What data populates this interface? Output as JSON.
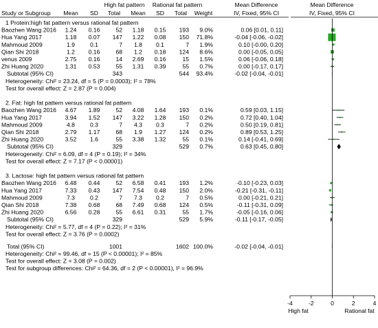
{
  "chart_data": {
    "type": "forest",
    "header": {
      "group1": "High fat pattern",
      "group2": "Rational fat pattern",
      "effect_text": "Mean Difference",
      "effect_method": "IV, Fixed, 95% CI",
      "effect_plot": "Mean Difference",
      "effect_plot_method": "IV, Fixed, 95% CI",
      "study": "Study or Subgroup",
      "mean": "Mean",
      "sd": "SD",
      "total": "Total",
      "weight": "Weight"
    },
    "subgroups": [
      {
        "title": "1  Protein:high fat pattern versus rational  fat pattern",
        "studies": [
          {
            "name": "Baozhen Wang 2016",
            "m1": "1.24",
            "sd1": "0.16",
            "n1": "52",
            "m2": "1.18",
            "sd2": "0.15",
            "n2": "193",
            "weight": "9.0%",
            "ci_text": "0.06 [0.01, 0.11]",
            "md": 0.06,
            "lo": 0.01,
            "hi": 0.11,
            "w": 9.0
          },
          {
            "name": "Hua Yang 2017",
            "m1": "1.18",
            "sd1": "0.07",
            "n1": "147",
            "m2": "1.22",
            "sd2": "0.08",
            "n2": "150",
            "weight": "71.8%",
            "ci_text": "-0.04 [-0.06, -0.02]",
            "md": -0.04,
            "lo": -0.06,
            "hi": -0.02,
            "w": 71.8
          },
          {
            "name": "Mahmoud 2009",
            "m1": "1.9",
            "sd1": "0.1",
            "n1": "7",
            "m2": "1.8",
            "sd2": "0.1",
            "n2": "7",
            "weight": "1.9%",
            "ci_text": "0.10 [-0.00, 0.20]",
            "md": 0.1,
            "lo": 0.0,
            "hi": 0.2,
            "w": 1.9
          },
          {
            "name": "Qian Shi 2018",
            "m1": "1.2",
            "sd1": "0.16",
            "n1": "68",
            "m2": "1.2",
            "sd2": "0.18",
            "n2": "124",
            "weight": "8.6%",
            "ci_text": "0.00 [-0.05, 0.05]",
            "md": 0.0,
            "lo": -0.05,
            "hi": 0.05,
            "w": 8.6
          },
          {
            "name": "venus 2009",
            "m1": "2.75",
            "sd1": "0.16",
            "n1": "14",
            "m2": "2.69",
            "sd2": "0.16",
            "n2": "15",
            "weight": "1.5%",
            "ci_text": "0.06 [-0.06, 0.18]",
            "md": 0.06,
            "lo": -0.06,
            "hi": 0.18,
            "w": 1.5
          },
          {
            "name": "Zhi Huang 2020",
            "m1": "1.31",
            "sd1": "0.53",
            "n1": "55",
            "m2": "1.31",
            "sd2": "0.39",
            "n2": "55",
            "weight": "0.7%",
            "ci_text": "0.00 [-0.17, 0.17]",
            "md": 0.0,
            "lo": -0.17,
            "hi": 0.17,
            "w": 0.7
          }
        ],
        "subtotal": {
          "label": "Subtotal (95% CI)",
          "n1": "343",
          "n2": "544",
          "weight": "93.4%",
          "ci_text": "-0.02 [-0.04, -0.01]",
          "md": -0.02,
          "lo": -0.04,
          "hi": -0.01
        },
        "heterogeneity": "Heterogeneity: Chi² = 23.24, df = 5 (P = 0.0003); I² = 78%",
        "overall": "Test for overall effect: Z = 2.87 (P = 0.004)"
      },
      {
        "title": "2. Fat: high fat pattern versus rational fat pattern",
        "studies": [
          {
            "name": "Baozhen Wang 2016",
            "m1": "4.67",
            "sd1": "1.89",
            "n1": "52",
            "m2": "4.08",
            "sd2": "1.64",
            "n2": "193",
            "weight": "0.1%",
            "ci_text": "0.59 [0.03, 1.15]",
            "md": 0.59,
            "lo": 0.03,
            "hi": 1.15,
            "w": 0.1
          },
          {
            "name": "Hua Yang 2017",
            "m1": "3.94",
            "sd1": "1.52",
            "n1": "147",
            "m2": "3.22",
            "sd2": "1.28",
            "n2": "150",
            "weight": "0.2%",
            "ci_text": "0.72 [0.40, 1.04]",
            "md": 0.72,
            "lo": 0.4,
            "hi": 1.04,
            "w": 0.2
          },
          {
            "name": "Mahmoud 2009",
            "m1": "4.8",
            "sd1": "0.3",
            "n1": "7",
            "m2": "4.3",
            "sd2": "0.3",
            "n2": "7",
            "weight": "0.2%",
            "ci_text": "0.50 [0.19, 0.81]",
            "md": 0.5,
            "lo": 0.19,
            "hi": 0.81,
            "w": 0.2
          },
          {
            "name": "Qian Shi 2018",
            "m1": "2.79",
            "sd1": "1.17",
            "n1": "68",
            "m2": "1.9",
            "sd2": "1.27",
            "n2": "124",
            "weight": "0.2%",
            "ci_text": "0.89 [0.53, 1.25]",
            "md": 0.89,
            "lo": 0.53,
            "hi": 1.25,
            "w": 0.2
          },
          {
            "name": "Zhi Huang 2020",
            "m1": "3.52",
            "sd1": "1.6",
            "n1": "55",
            "m2": "3.38",
            "sd2": "1.32",
            "n2": "55",
            "weight": "0.1%",
            "ci_text": "0.14 [-0.41, 0.69]",
            "md": 0.14,
            "lo": -0.41,
            "hi": 0.69,
            "w": 0.1
          }
        ],
        "subtotal": {
          "label": "Subtotal (95% CI)",
          "n1": "329",
          "n2": "529",
          "weight": "0.7%",
          "ci_text": "0.63 [0.45, 0.80]",
          "md": 0.63,
          "lo": 0.45,
          "hi": 0.8
        },
        "heterogeneity": "Heterogeneity: Chi² = 6.09, df = 4 (P = 0.19); I² = 34%",
        "overall": "Test for overall effect: Z = 7.17 (P < 0.00001)"
      },
      {
        "title": "3. Lactose: high fat pattern versus rational fat pattern",
        "studies": [
          {
            "name": "Baozhen Wang 2016",
            "m1": "6.48",
            "sd1": "0.44",
            "n1": "52",
            "m2": "6.58",
            "sd2": "0.41",
            "n2": "193",
            "weight": "1.2%",
            "ci_text": "-0.10 [-0.23, 0.03]",
            "md": -0.1,
            "lo": -0.23,
            "hi": 0.03,
            "w": 1.2
          },
          {
            "name": "Hua Yang 2017",
            "m1": "7.33",
            "sd1": "0.43",
            "n1": "147",
            "m2": "7.54",
            "sd2": "0.48",
            "n2": "150",
            "weight": "2.0%",
            "ci_text": "-0.21 [-0.31, -0.11]",
            "md": -0.21,
            "lo": -0.31,
            "hi": -0.11,
            "w": 2.0
          },
          {
            "name": "Mahmoud 2009",
            "m1": "7.3",
            "sd1": "0.2",
            "n1": "7",
            "m2": "7.3",
            "sd2": "0.2",
            "n2": "7",
            "weight": "0.5%",
            "ci_text": "0.00 [-0.21, 0.21]",
            "md": 0.0,
            "lo": -0.21,
            "hi": 0.21,
            "w": 0.5
          },
          {
            "name": "Qian Shi 2018",
            "m1": "7.38",
            "sd1": "0.68",
            "n1": "68",
            "m2": "7.49",
            "sd2": "0.68",
            "n2": "124",
            "weight": "0.5%",
            "ci_text": "-0.11 [-0.31, 0.09]",
            "md": -0.11,
            "lo": -0.31,
            "hi": 0.09,
            "w": 0.5
          },
          {
            "name": "Zhi Huang 2020",
            "m1": "6.56",
            "sd1": "0.28",
            "n1": "55",
            "m2": "6.61",
            "sd2": "0.31",
            "n2": "55",
            "weight": "1.7%",
            "ci_text": "-0.05 [-0.16, 0.06]",
            "md": -0.05,
            "lo": -0.16,
            "hi": 0.06,
            "w": 1.7
          }
        ],
        "subtotal": {
          "label": "Subtotal (95% CI)",
          "n1": "329",
          "n2": "529",
          "weight": "5.9%",
          "ci_text": "-0.11 [-0.17, -0.05]",
          "md": -0.11,
          "lo": -0.17,
          "hi": -0.05
        },
        "heterogeneity": "Heterogeneity: Chi² = 5.77, df = 4 (P = 0.22); I² = 31%",
        "overall": "Test for overall effect: Z = 3.76 (P = 0.0002)"
      }
    ],
    "total": {
      "label": "Total (95% CI)",
      "n1": "1001",
      "n2": "1602",
      "weight": "100.0%",
      "ci_text": "-0.02 [-0.04, -0.01]",
      "md": -0.02,
      "lo": -0.04,
      "hi": -0.01
    },
    "total_heterogeneity": "Heterogeneity: Chi² = 99.46, df = 15 (P < 0.00001); I² = 85%",
    "total_overall": "Test for overall effect: Z = 3.08 (P = 0.002)",
    "subgroup_diff": "Test for subgroup differences: Chi² = 64.36, df = 2 (P < 0.00001), I² = 96.9%",
    "axis": {
      "min": -4,
      "max": 4,
      "ticks": [
        -4,
        -2,
        0,
        2,
        4
      ],
      "left_label": "High fat",
      "right_label": "Rational fat"
    },
    "colors": {
      "marker": "#22aa22",
      "diamond": "#000000",
      "lines": "#000000"
    }
  }
}
